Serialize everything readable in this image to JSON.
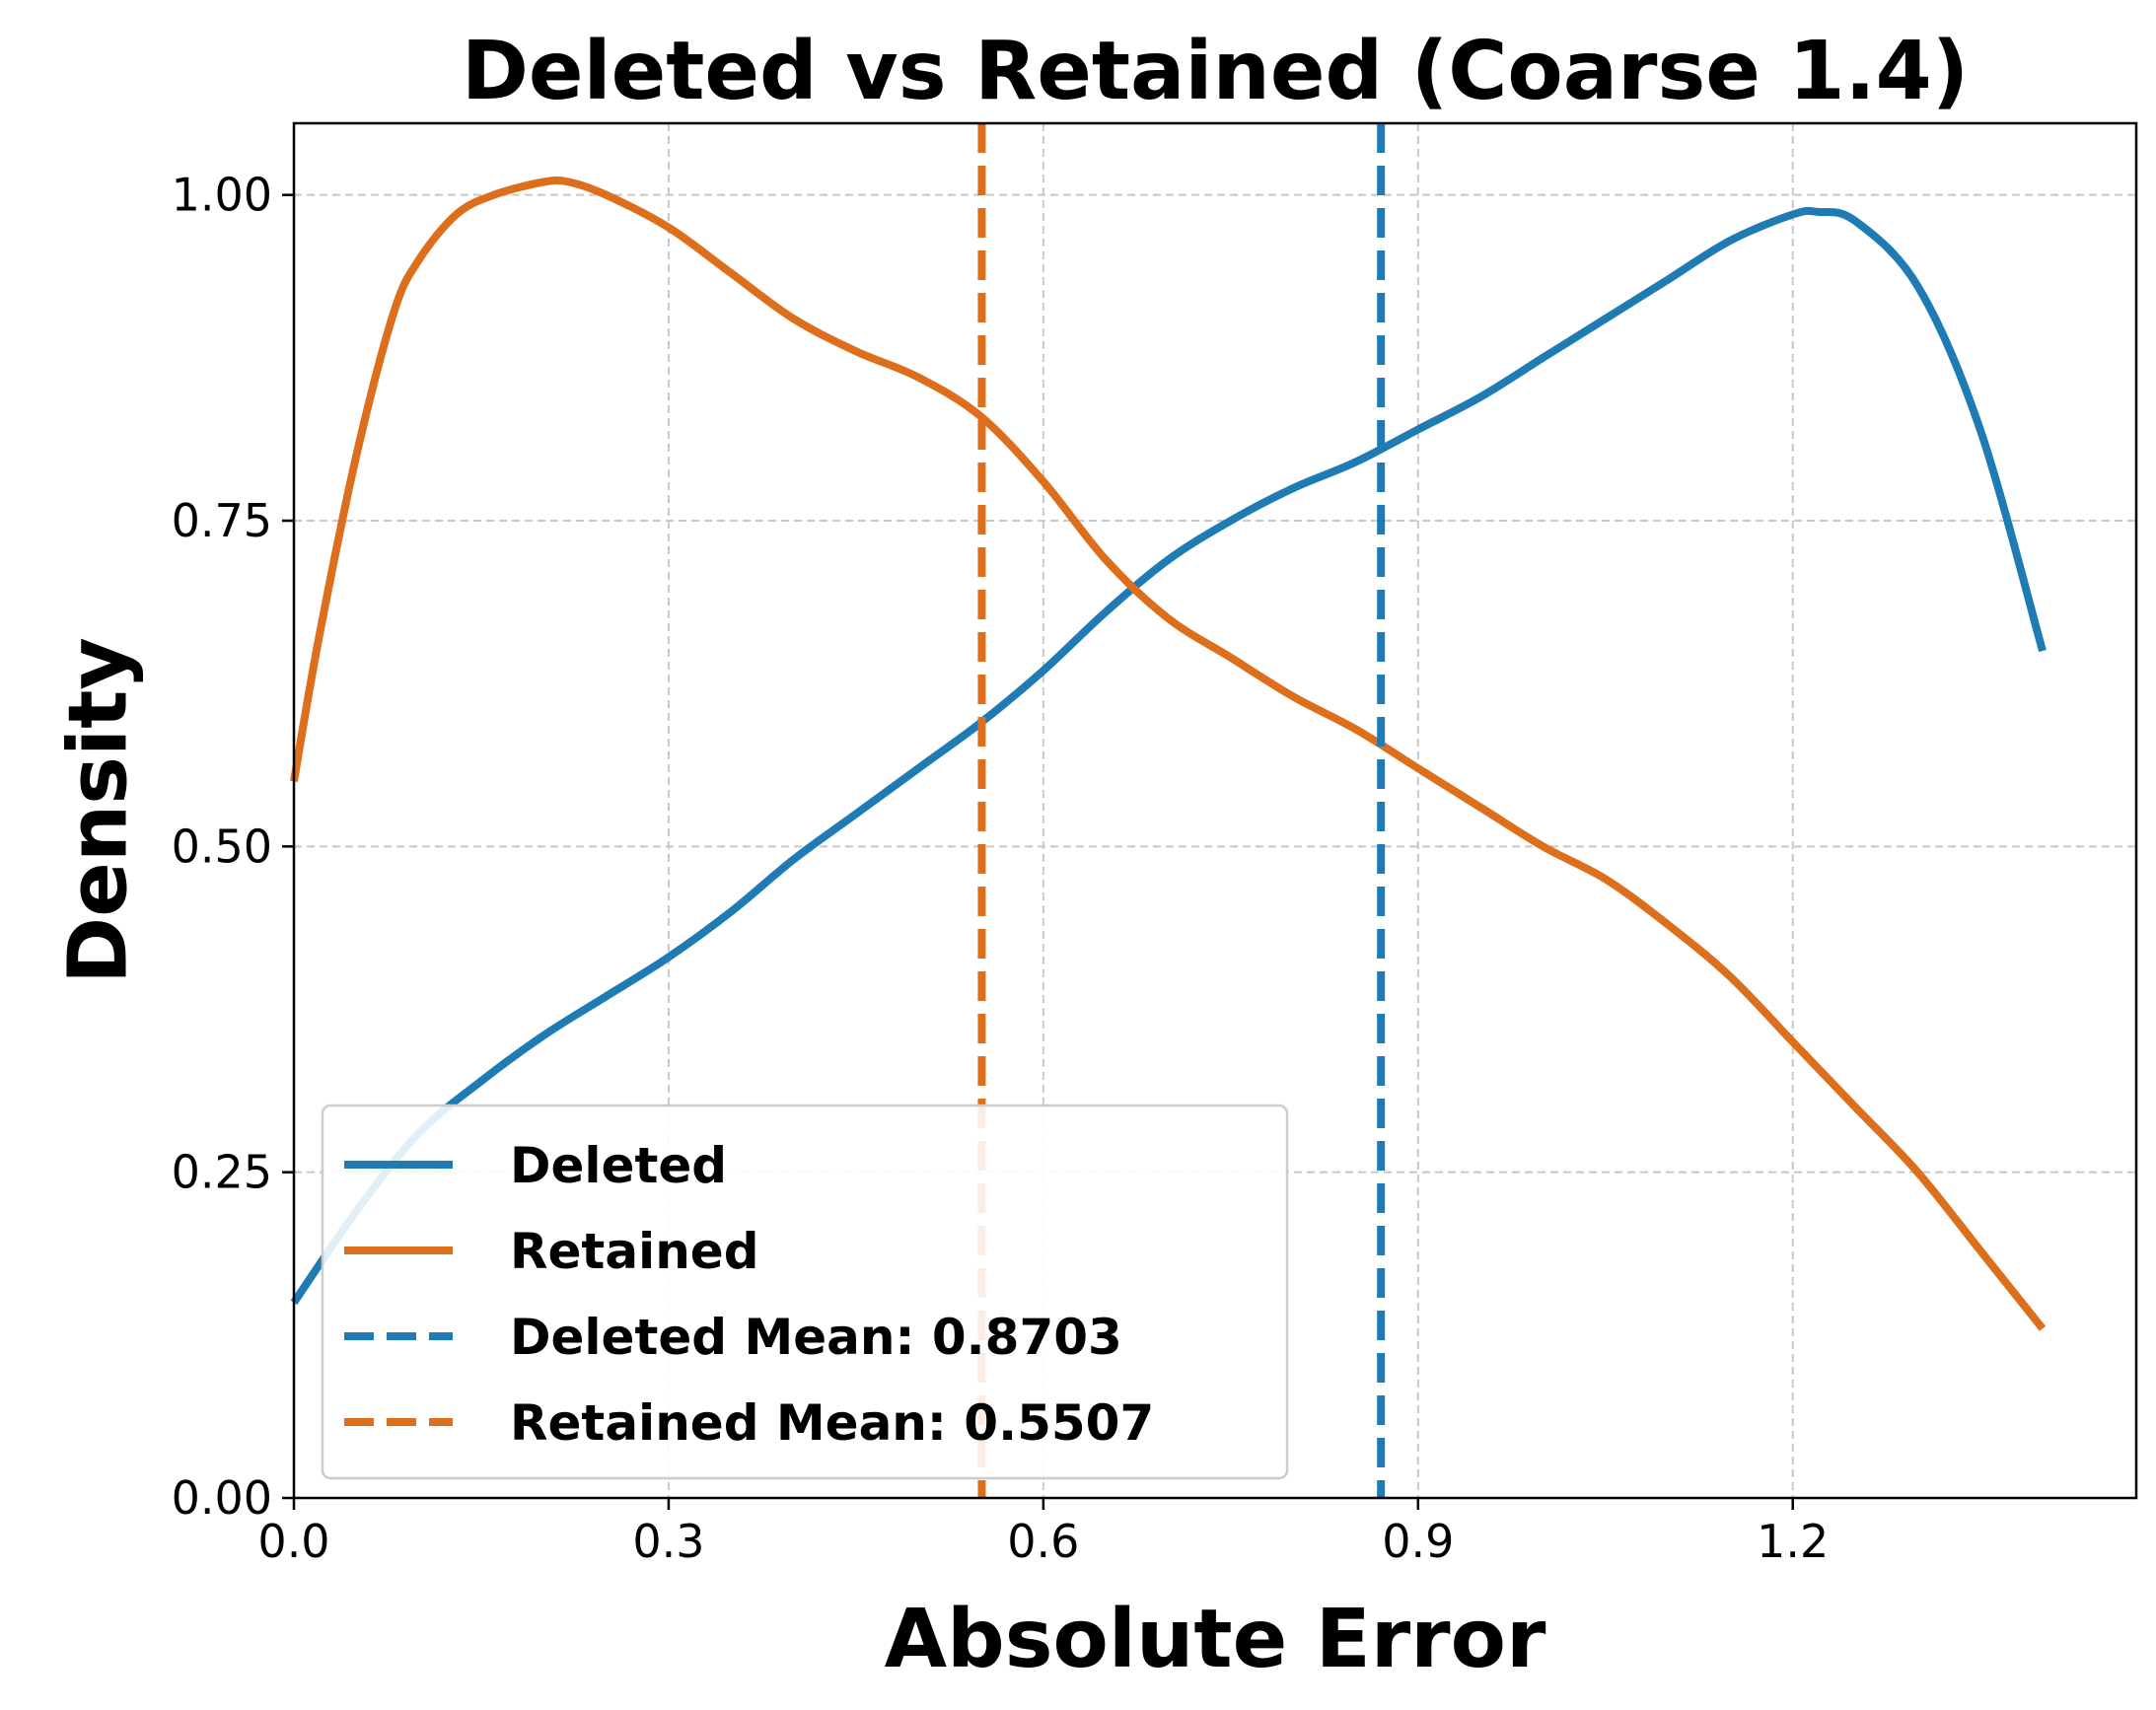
{
  "chart_data": {
    "type": "line",
    "title": "Deleted vs Retained (Coarse 1.4)",
    "xlabel": "Absolute Error",
    "ylabel": "Density",
    "xlim": [
      0,
      1.475
    ],
    "ylim": [
      0,
      1.055
    ],
    "xticks": [
      0.0,
      0.3,
      0.6,
      0.9,
      1.2
    ],
    "xtick_labels": [
      "0.0",
      "0.3",
      "0.6",
      "0.9",
      "1.2"
    ],
    "yticks": [
      0.0,
      0.25,
      0.5,
      0.75,
      1.0
    ],
    "ytick_labels": [
      "0.00",
      "0.25",
      "0.50",
      "0.75",
      "1.00"
    ],
    "grid": true,
    "legend_position": "lower-left",
    "series": [
      {
        "name": "Deleted",
        "color": "#1f7bb4",
        "style": "solid",
        "x": [
          0.0,
          0.05,
          0.1,
          0.15,
          0.2,
          0.25,
          0.3,
          0.35,
          0.4,
          0.45,
          0.5,
          0.55,
          0.6,
          0.65,
          0.7,
          0.75,
          0.8,
          0.85,
          0.9,
          0.95,
          1.0,
          1.05,
          1.1,
          1.15,
          1.2,
          1.22,
          1.25,
          1.3,
          1.35,
          1.4
        ],
        "y": [
          0.15,
          0.22,
          0.28,
          0.32,
          0.355,
          0.385,
          0.415,
          0.45,
          0.49,
          0.525,
          0.56,
          0.595,
          0.635,
          0.68,
          0.72,
          0.75,
          0.775,
          0.795,
          0.82,
          0.845,
          0.875,
          0.905,
          0.935,
          0.965,
          0.985,
          0.987,
          0.98,
          0.93,
          0.82,
          0.65
        ]
      },
      {
        "name": "Retained",
        "color": "#dc6e1c",
        "style": "solid",
        "x": [
          0.0,
          0.02,
          0.05,
          0.08,
          0.1,
          0.13,
          0.16,
          0.2,
          0.22,
          0.25,
          0.3,
          0.35,
          0.4,
          0.45,
          0.5,
          0.55,
          0.6,
          0.65,
          0.7,
          0.75,
          0.8,
          0.85,
          0.9,
          0.95,
          1.0,
          1.05,
          1.1,
          1.15,
          1.2,
          1.25,
          1.3,
          1.35,
          1.4
        ],
        "y": [
          0.55,
          0.66,
          0.8,
          0.91,
          0.95,
          0.985,
          1.0,
          1.01,
          1.01,
          1.0,
          0.975,
          0.94,
          0.905,
          0.88,
          0.86,
          0.83,
          0.78,
          0.72,
          0.675,
          0.645,
          0.615,
          0.59,
          0.56,
          0.53,
          0.5,
          0.475,
          0.44,
          0.4,
          0.35,
          0.3,
          0.25,
          0.19,
          0.13
        ]
      },
      {
        "name": "Deleted Mean: 0.8703",
        "color": "#1f7bb4",
        "style": "dashed",
        "vline": 0.8703
      },
      {
        "name": "Retained Mean: 0.5507",
        "color": "#dc6e1c",
        "style": "dashed",
        "vline": 0.5507
      }
    ]
  }
}
